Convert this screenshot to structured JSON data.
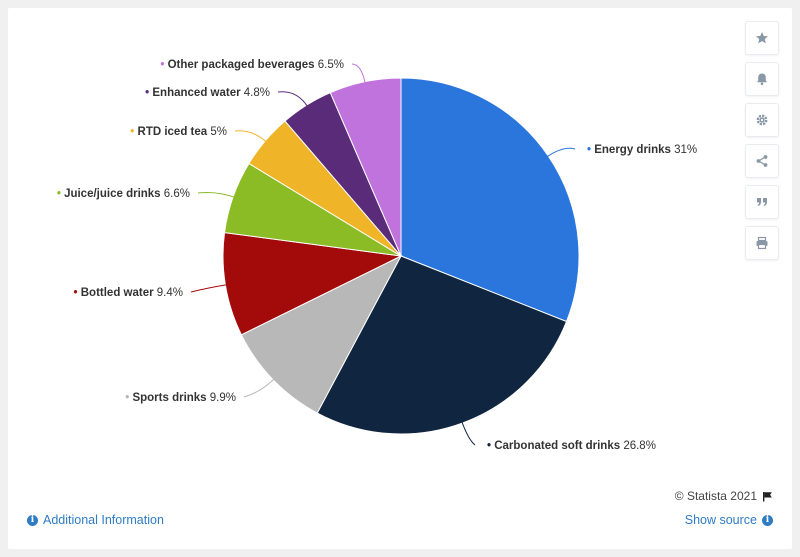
{
  "chart_data": {
    "type": "pie",
    "slices": [
      {
        "label": "Energy drinks",
        "value": 31,
        "display": "31%",
        "color": "#2a76dd"
      },
      {
        "label": "Carbonated soft drinks",
        "value": 26.8,
        "display": "26.8%",
        "color": "#10253f"
      },
      {
        "label": "Sports drinks",
        "value": 9.9,
        "display": "9.9%",
        "color": "#b8b8b8"
      },
      {
        "label": "Bottled water",
        "value": 9.4,
        "display": "9.4%",
        "color": "#a30b0b"
      },
      {
        "label": "Juice/juice drinks",
        "value": 6.6,
        "display": "6.6%",
        "color": "#8bbb25"
      },
      {
        "label": "RTD iced tea",
        "value": 5,
        "display": "5%",
        "color": "#f0b428"
      },
      {
        "label": "Enhanced water",
        "value": 4.8,
        "display": "4.8%",
        "color": "#5a2b79"
      },
      {
        "label": "Other packaged beverages",
        "value": 6.5,
        "display": "6.5%",
        "color": "#c173dd"
      }
    ],
    "legend": "none",
    "data_labels": "outside with connector lines"
  },
  "footer": {
    "credit": "© Statista 2021",
    "additional_info": "Additional Information",
    "show_source": "Show source"
  },
  "toolbar": {
    "icons": [
      "star-icon",
      "bell-icon",
      "gear-icon",
      "share-icon",
      "quote-icon",
      "print-icon"
    ]
  }
}
